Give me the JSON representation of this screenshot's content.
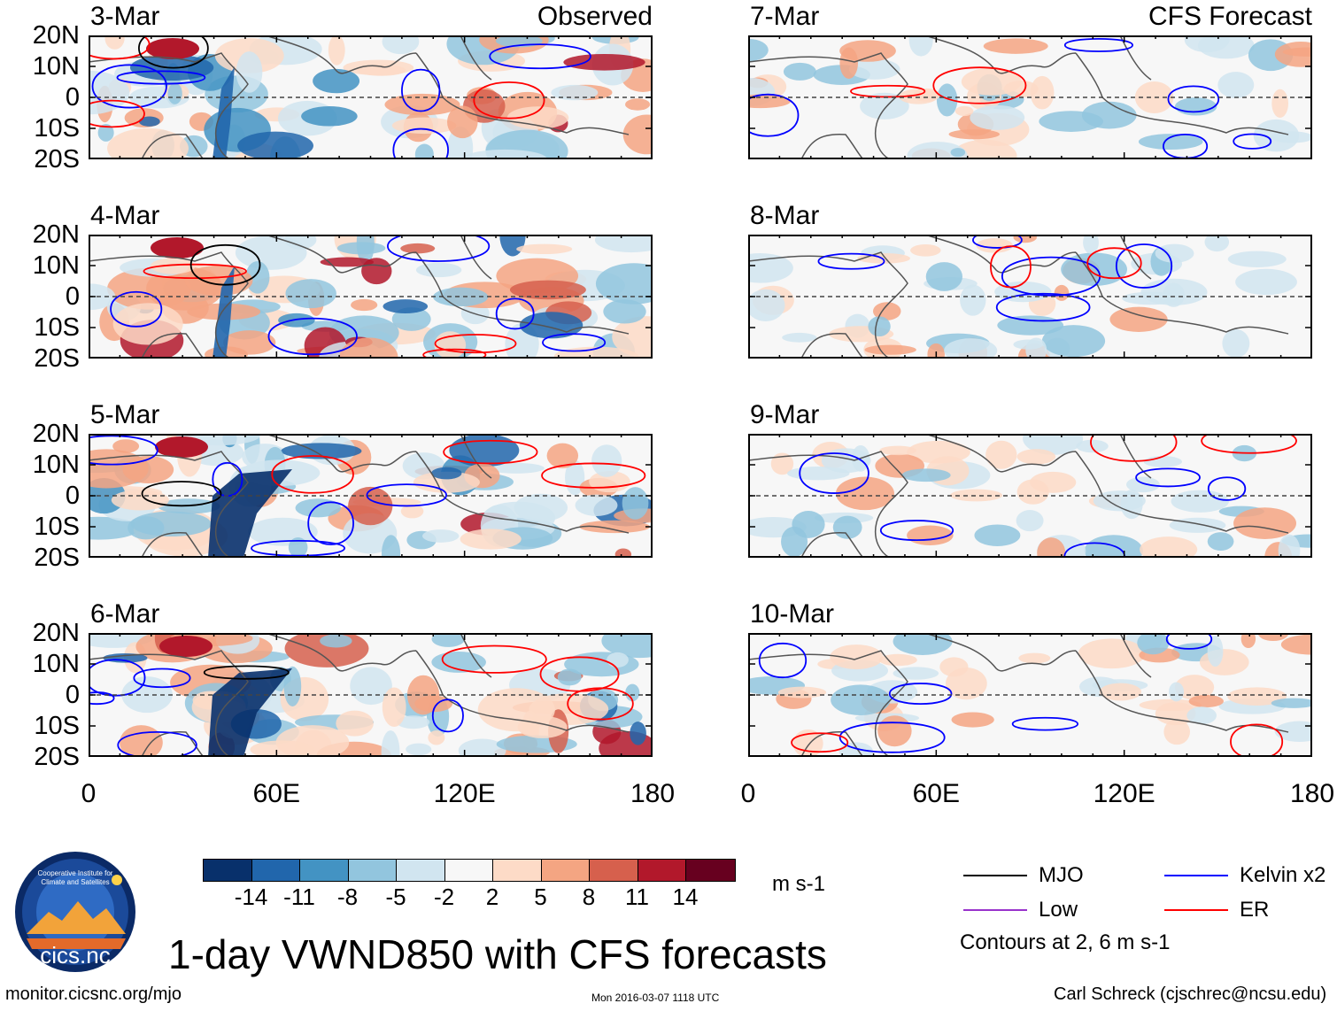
{
  "panels": [
    {
      "date": "3-Mar",
      "label": "Observed"
    },
    {
      "date": "4-Mar",
      "label": ""
    },
    {
      "date": "5-Mar",
      "label": ""
    },
    {
      "date": "6-Mar",
      "label": ""
    },
    {
      "date": "7-Mar",
      "label": "CFS Forecast"
    },
    {
      "date": "8-Mar",
      "label": ""
    },
    {
      "date": "9-Mar",
      "label": ""
    },
    {
      "date": "10-Mar",
      "label": ""
    }
  ],
  "lat_labels": [
    "20N",
    "10N",
    "0",
    "10S",
    "20S"
  ],
  "lon_labels": [
    "0",
    "60E",
    "120E",
    "180"
  ],
  "colorbar": {
    "colors": [
      "#08306b",
      "#2166ac",
      "#4393c3",
      "#92c5de",
      "#d1e5f0",
      "#f7f7f7",
      "#fddbc7",
      "#f4a582",
      "#d6604d",
      "#b2182b",
      "#67001f"
    ],
    "ticks": [
      "-14",
      "-11",
      "-8",
      "-5",
      "-2",
      "2",
      "5",
      "8",
      "11",
      "14"
    ],
    "units": "m s-1"
  },
  "legend": {
    "items": [
      {
        "label": "MJO",
        "color": "#000000"
      },
      {
        "label": "Kelvin x2",
        "color": "#0000ff"
      },
      {
        "label": "Low",
        "color": "#9933cc"
      },
      {
        "label": "ER",
        "color": "#ff0000"
      }
    ],
    "note": "Contours at 2, 6 m s-1"
  },
  "logo_text": "cics.nc",
  "logo_ring_text": "Cooperative Institute for Climate and Satellites",
  "title": "1-day VWND850 with CFS forecasts",
  "footer": {
    "left": "monitor.cicsnc.org/mjo",
    "center": "Mon 2016-03-07 1118 UTC",
    "right": "Carl Schreck (cjschrec@ncsu.edu)"
  }
}
